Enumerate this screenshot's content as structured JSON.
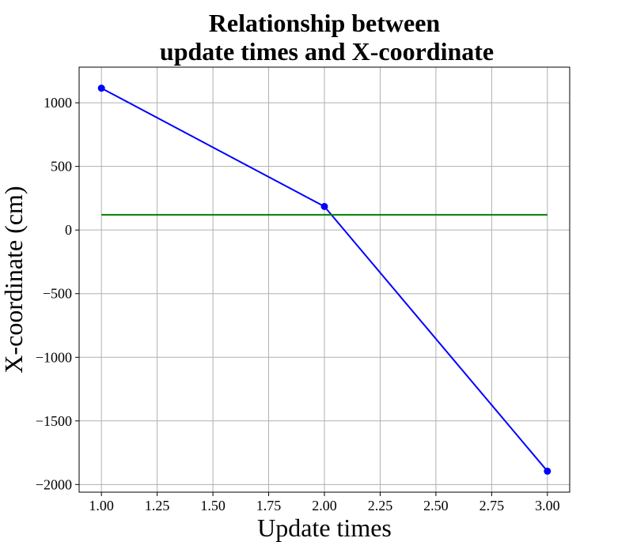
{
  "chart_data": {
    "type": "line",
    "title": [
      "Relationship between",
      "update times and X-coordinate"
    ],
    "xlabel": "Update times",
    "ylabel": "X-coordinate (cm)",
    "xlim": [
      0.9,
      3.1
    ],
    "ylim": [
      -2060,
      1280
    ],
    "x_ticks": [
      1.0,
      1.25,
      1.5,
      1.75,
      2.0,
      2.25,
      2.5,
      2.75,
      3.0
    ],
    "x_tick_labels": [
      "1.00",
      "1.25",
      "1.50",
      "1.75",
      "2.00",
      "2.25",
      "2.50",
      "2.75",
      "3.00"
    ],
    "y_ticks": [
      1000,
      500,
      0,
      -500,
      -1000,
      -1500,
      -2000
    ],
    "y_tick_labels": [
      "1000",
      "500",
      "0",
      "−500",
      "−1000",
      "−1500",
      "−2000"
    ],
    "grid": true,
    "series": [
      {
        "color": "#0000ff",
        "markers": true,
        "x": [
          1.0,
          2.0,
          3.0
        ],
        "y": [
          1115,
          185,
          -1895
        ]
      },
      {
        "color": "#008000",
        "markers": false,
        "x": [
          1.0,
          3.0
        ],
        "y": [
          120,
          120
        ]
      }
    ]
  }
}
